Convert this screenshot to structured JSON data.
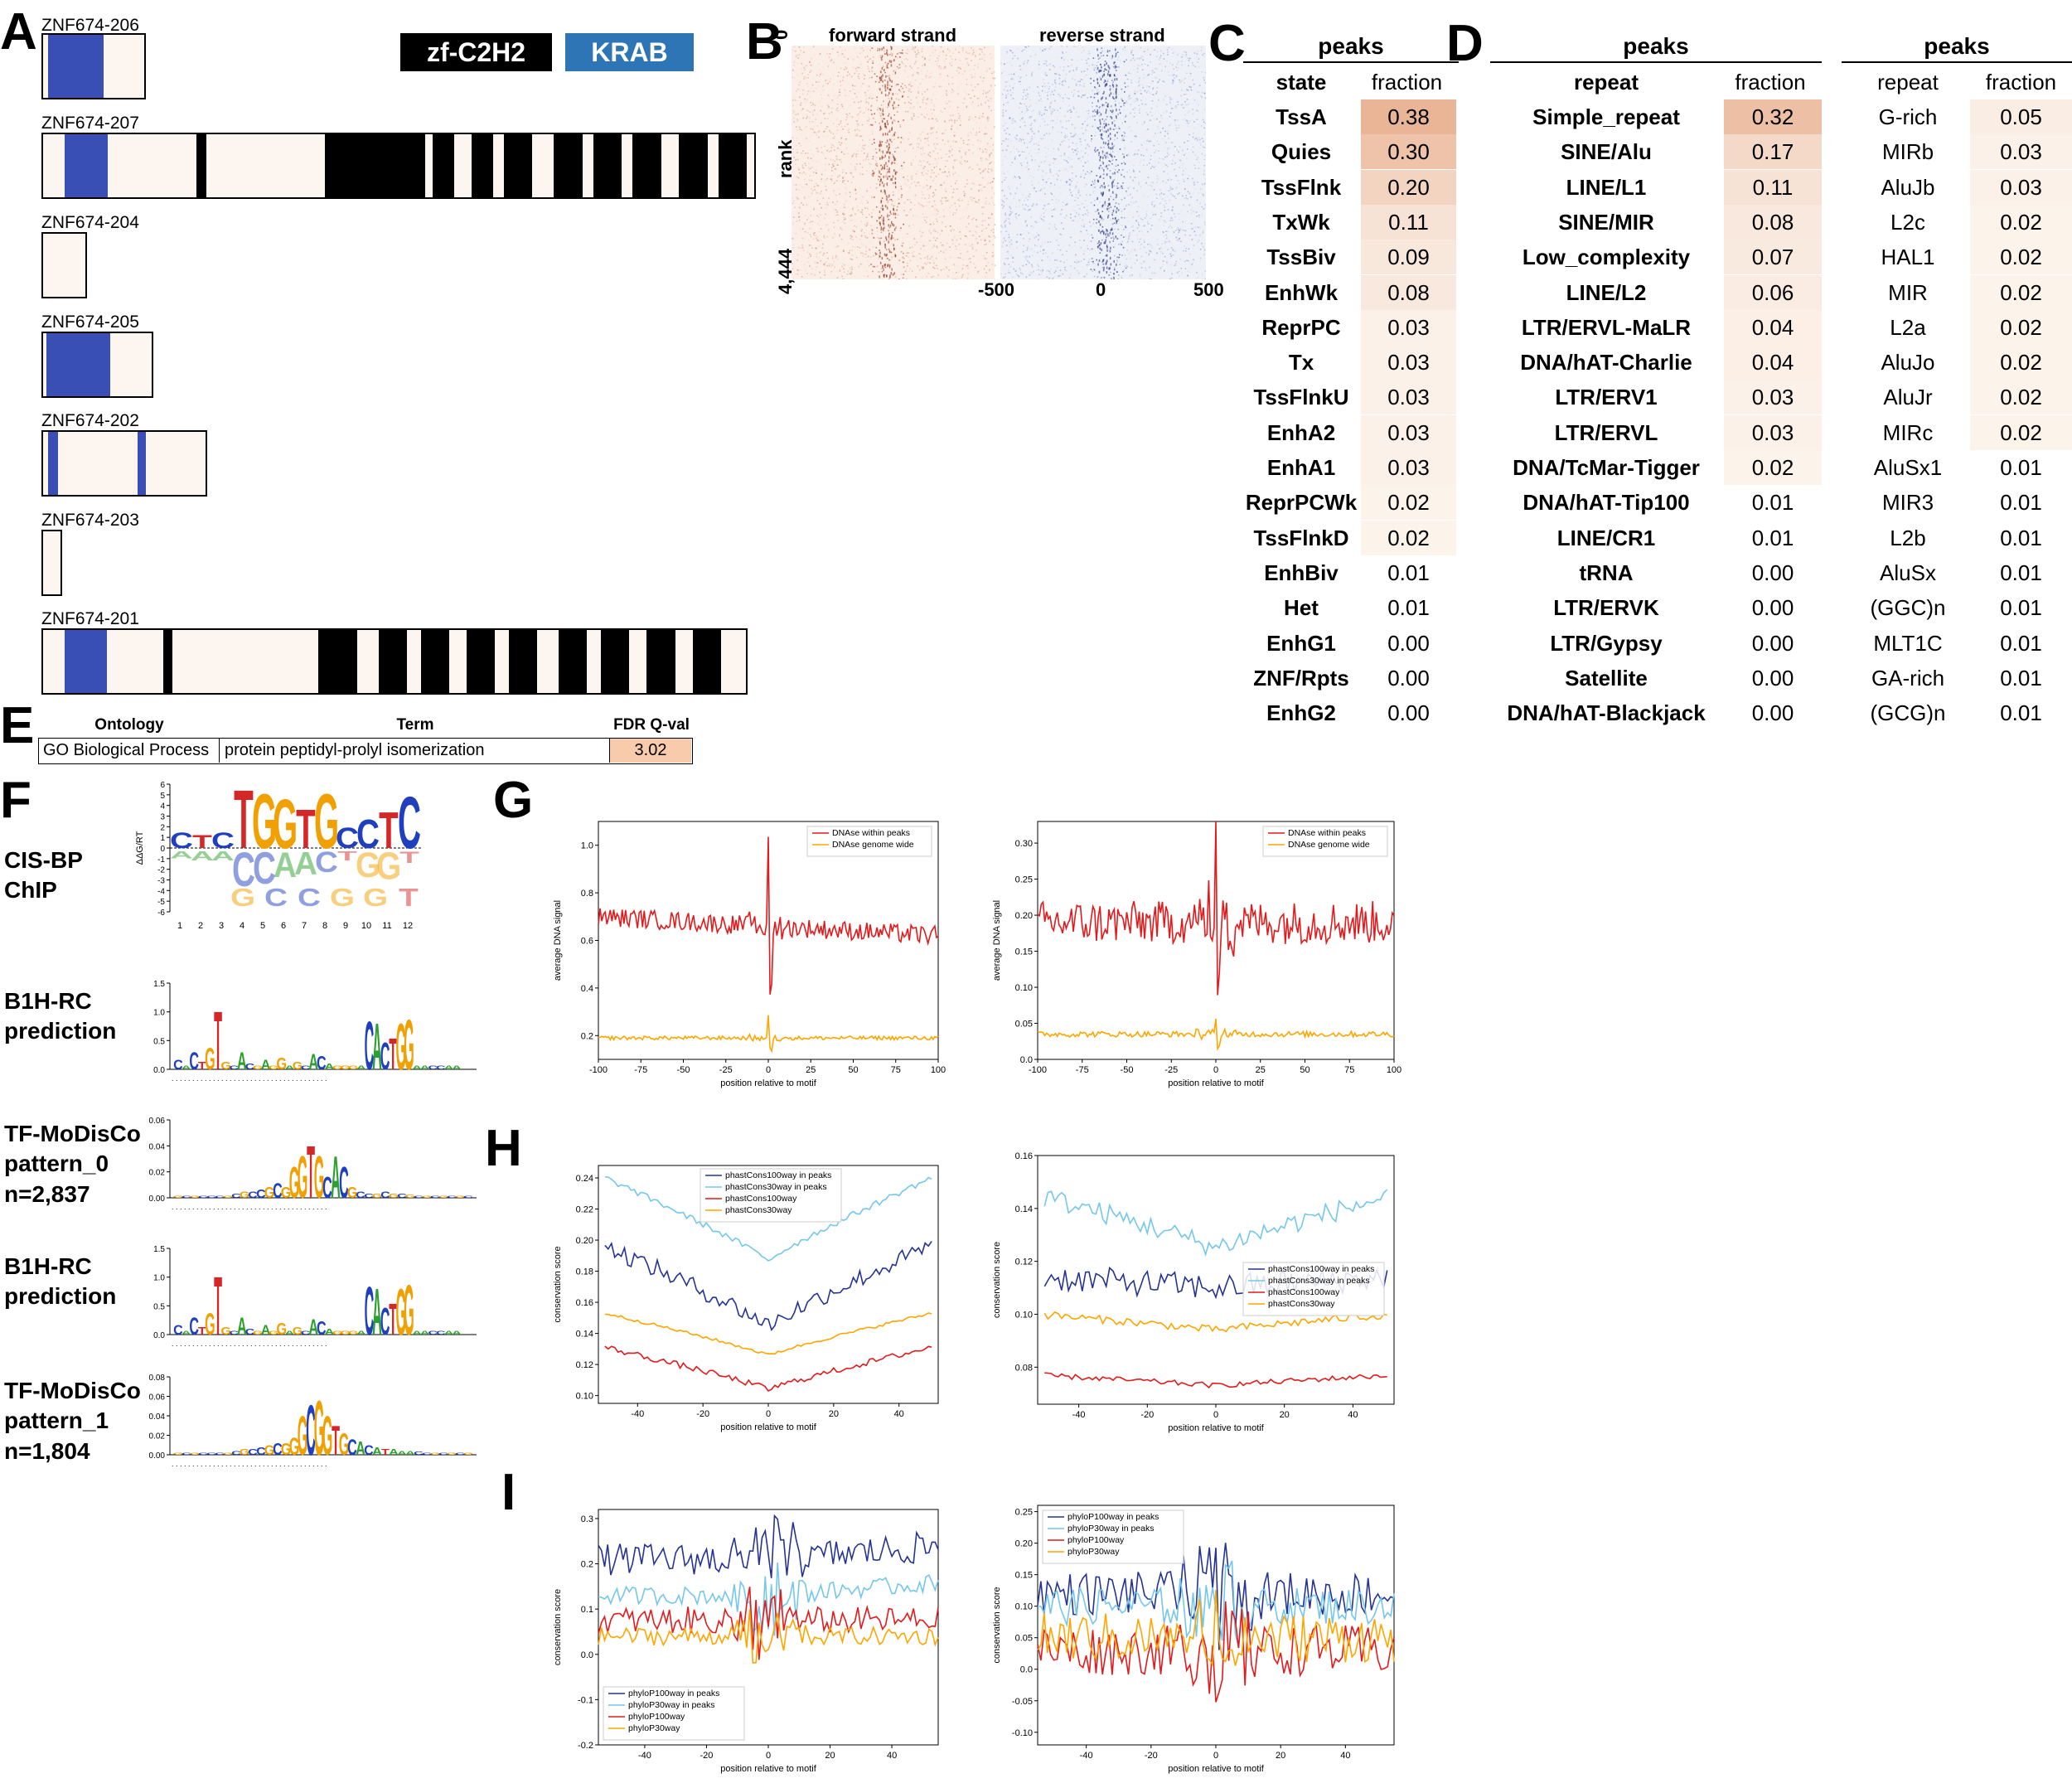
{
  "panelA": {
    "letter": "A",
    "legend": [
      {
        "label": "zf-C2H2",
        "color": "#000000"
      },
      {
        "label": "KRAB",
        "color": "#2e75b6"
      }
    ],
    "isoforms": [
      {
        "name": "ZNF674-206"
      },
      {
        "name": "ZNF674-207"
      },
      {
        "name": "ZNF674-204"
      },
      {
        "name": "ZNF674-205"
      },
      {
        "name": "ZNF674-202"
      },
      {
        "name": "ZNF674-203"
      },
      {
        "name": "ZNF674-201"
      }
    ]
  },
  "panelB": {
    "letter": "B",
    "forward": "forward strand",
    "reverse": "reverse strand",
    "ylabel": "rank",
    "ytick_top": "0",
    "ytick_bottom": "4,444",
    "xticks": [
      "-500",
      "0",
      "500"
    ]
  },
  "panelC": {
    "letter": "C",
    "header": "peaks",
    "col1": "state",
    "col2": "fraction",
    "rows": [
      {
        "label": "TssA",
        "value": "0.38"
      },
      {
        "label": "Quies",
        "value": "0.30"
      },
      {
        "label": "TssFlnk",
        "value": "0.20"
      },
      {
        "label": "TxWk",
        "value": "0.11"
      },
      {
        "label": "TssBiv",
        "value": "0.09"
      },
      {
        "label": "EnhWk",
        "value": "0.08"
      },
      {
        "label": "ReprPC",
        "value": "0.03"
      },
      {
        "label": "Tx",
        "value": "0.03"
      },
      {
        "label": "TssFlnkU",
        "value": "0.03"
      },
      {
        "label": "EnhA2",
        "value": "0.03"
      },
      {
        "label": "EnhA1",
        "value": "0.03"
      },
      {
        "label": "ReprPCWk",
        "value": "0.02"
      },
      {
        "label": "TssFlnkD",
        "value": "0.02"
      },
      {
        "label": "EnhBiv",
        "value": "0.01"
      },
      {
        "label": "Het",
        "value": "0.01"
      },
      {
        "label": "EnhG1",
        "value": "0.00"
      },
      {
        "label": "ZNF/Rpts",
        "value": "0.00"
      },
      {
        "label": "EnhG2",
        "value": "0.00"
      }
    ]
  },
  "panelD": {
    "letter": "D",
    "header_left": "peaks",
    "header_right": "peaks",
    "col1": "repeat",
    "col2": "fraction",
    "col3": "repeat",
    "col4": "fraction",
    "left_rows": [
      {
        "label": "Simple_repeat",
        "value": "0.32"
      },
      {
        "label": "SINE/Alu",
        "value": "0.17"
      },
      {
        "label": "LINE/L1",
        "value": "0.11"
      },
      {
        "label": "SINE/MIR",
        "value": "0.08"
      },
      {
        "label": "Low_complexity",
        "value": "0.07"
      },
      {
        "label": "LINE/L2",
        "value": "0.06"
      },
      {
        "label": "LTR/ERVL-MaLR",
        "value": "0.04"
      },
      {
        "label": "DNA/hAT-Charlie",
        "value": "0.04"
      },
      {
        "label": "LTR/ERV1",
        "value": "0.03"
      },
      {
        "label": "LTR/ERVL",
        "value": "0.03"
      },
      {
        "label": "DNA/TcMar-Tigger",
        "value": "0.02"
      },
      {
        "label": "DNA/hAT-Tip100",
        "value": "0.01"
      },
      {
        "label": "LINE/CR1",
        "value": "0.01"
      },
      {
        "label": "tRNA",
        "value": "0.00"
      },
      {
        "label": "LTR/ERVK",
        "value": "0.00"
      },
      {
        "label": "LTR/Gypsy",
        "value": "0.00"
      },
      {
        "label": "Satellite",
        "value": "0.00"
      },
      {
        "label": "DNA/hAT-Blackjack",
        "value": "0.00"
      }
    ],
    "right_rows": [
      {
        "label": "G-rich",
        "value": "0.05"
      },
      {
        "label": "MIRb",
        "value": "0.03"
      },
      {
        "label": "AluJb",
        "value": "0.03"
      },
      {
        "label": "L2c",
        "value": "0.02"
      },
      {
        "label": "HAL1",
        "value": "0.02"
      },
      {
        "label": "MIR",
        "value": "0.02"
      },
      {
        "label": "L2a",
        "value": "0.02"
      },
      {
        "label": "AluJo",
        "value": "0.02"
      },
      {
        "label": "AluJr",
        "value": "0.02"
      },
      {
        "label": "MIRc",
        "value": "0.02"
      },
      {
        "label": "AluSx1",
        "value": "0.01"
      },
      {
        "label": "MIR3",
        "value": "0.01"
      },
      {
        "label": "L2b",
        "value": "0.01"
      },
      {
        "label": "AluSx",
        "value": "0.01"
      },
      {
        "label": "(GGC)n",
        "value": "0.01"
      },
      {
        "label": "MLT1C",
        "value": "0.01"
      },
      {
        "label": "GA-rich",
        "value": "0.01"
      },
      {
        "label": "(GCG)n",
        "value": "0.01"
      }
    ]
  },
  "panelE": {
    "letter": "E",
    "headers": [
      "Ontology",
      "Term",
      "FDR Q-val"
    ],
    "row": [
      "GO Biological Process",
      "protein peptidyl-prolyl isomerization",
      "3.02"
    ]
  },
  "panelF": {
    "letter": "F",
    "rows": [
      {
        "label": "CIS-BP\nChIP",
        "ylabel": "ΔΔG/RT",
        "yticks": [
          "6",
          "5",
          "4",
          "3",
          "2",
          "1",
          "0",
          "-1",
          "-2",
          "-3",
          "-4",
          "-5",
          "-6"
        ],
        "xticks": [
          "1",
          "2",
          "3",
          "4",
          "5",
          "6",
          "7",
          "8",
          "9",
          "10",
          "11",
          "12"
        ]
      },
      {
        "label": "B1H-RC\nprediction",
        "yticks": [
          "1.5",
          "1.0",
          "0.5",
          "0.0"
        ]
      },
      {
        "label": "TF-MoDisCo\npattern_0\nn=2,837",
        "yticks": [
          "0.06",
          "0.04",
          "0.02",
          "0.00"
        ]
      },
      {
        "label": "B1H-RC\nprediction",
        "yticks": [
          "1.5",
          "1.0",
          "0.5",
          "0.0"
        ]
      },
      {
        "label": "TF-MoDisCo\npattern_1\nn=1,804",
        "yticks": [
          "0.08",
          "0.06",
          "0.04",
          "0.02",
          "0.00"
        ]
      }
    ],
    "logo_main_letters": "TGGTGCTCC"
  },
  "panelG": {
    "letter": "G"
  },
  "panelH": {
    "letter": "H"
  },
  "panelI": {
    "letter": "I"
  },
  "chart_data": [
    {
      "id": "G-left",
      "type": "line",
      "xlabel": "position relative to motif",
      "ylabel": "average DNA signal",
      "xlim": [
        -100,
        100
      ],
      "ylim": [
        0.1,
        1.1
      ],
      "xticks": [
        -100,
        -75,
        -50,
        -25,
        0,
        25,
        50,
        75,
        100
      ],
      "yticks": [
        0.2,
        0.4,
        0.6,
        0.8,
        1.0
      ],
      "legend": "top-right",
      "series": [
        {
          "name": "DNAse within peaks",
          "color": "#e31a1c",
          "base": 0.66,
          "slope": -0.0004,
          "noise": 0.04,
          "peak_x": 0,
          "peak_y": 1.04,
          "dip_y": 0.4
        },
        {
          "name": "DNAse genome wide",
          "color": "#ffa500",
          "base": 0.19,
          "slope": 0,
          "noise": 0.008,
          "peak_x": 0,
          "peak_y": 0.28,
          "dip_y": 0.14
        }
      ]
    },
    {
      "id": "G-right",
      "type": "line",
      "xlabel": "position relative to motif",
      "ylabel": "average DNA signal",
      "xlim": [
        -100,
        100
      ],
      "ylim": [
        0.0,
        0.33
      ],
      "xticks": [
        -100,
        -75,
        -50,
        -25,
        0,
        25,
        50,
        75,
        100
      ],
      "yticks": [
        0.0,
        0.05,
        0.1,
        0.15,
        0.2,
        0.25,
        0.3
      ],
      "legend": "top-right",
      "series": [
        {
          "name": "DNAse within peaks",
          "color": "#e31a1c",
          "base": 0.19,
          "slope": 0,
          "noise": 0.03,
          "peak_x": 0,
          "peak_y": 0.33,
          "dip_y": 0.1
        },
        {
          "name": "DNAse genome wide",
          "color": "#ffa500",
          "base": 0.035,
          "slope": 0,
          "noise": 0.004,
          "peak_x": 0,
          "peak_y": 0.06,
          "dip_y": 0.018
        }
      ]
    },
    {
      "id": "H-left",
      "type": "line",
      "xlabel": "position relative to motif",
      "ylabel": "conservation score",
      "xlim": [
        -52,
        52
      ],
      "ylim": [
        0.095,
        0.248
      ],
      "xticks": [
        -40,
        -20,
        0,
        20,
        40
      ],
      "yticks": [
        0.1,
        0.12,
        0.14,
        0.16,
        0.18,
        0.2,
        0.22,
        0.24
      ],
      "legend": "top-center",
      "series": [
        {
          "name": "phastCons100way in peaks",
          "color": "#253494",
          "edge": 0.198,
          "center": 0.145,
          "noise": 0.006
        },
        {
          "name": "phastCons30way in peaks",
          "color": "#74c7ec",
          "edge": 0.242,
          "center": 0.187,
          "noise": 0.002
        },
        {
          "name": "phastCons100way",
          "color": "#e31a1c",
          "edge": 0.132,
          "center": 0.104,
          "noise": 0.002
        },
        {
          "name": "phastCons30way",
          "color": "#ffa500",
          "edge": 0.154,
          "center": 0.126,
          "noise": 0.001
        }
      ]
    },
    {
      "id": "H-right",
      "type": "line",
      "xlabel": "position relative to motif",
      "ylabel": "conservation score",
      "xlim": [
        -52,
        52
      ],
      "ylim": [
        0.066,
        0.16
      ],
      "xticks": [
        -40,
        -20,
        0,
        20,
        40
      ],
      "yticks": [
        0.08,
        0.1,
        0.12,
        0.14,
        0.16
      ],
      "legend": "center-right",
      "series": [
        {
          "name": "phastCons100way in peaks",
          "color": "#253494",
          "edge": 0.114,
          "center": 0.11,
          "noise": 0.005
        },
        {
          "name": "phastCons30way in peaks",
          "color": "#74c7ec",
          "edge": 0.145,
          "center": 0.125,
          "noise": 0.004
        },
        {
          "name": "phastCons100way",
          "color": "#e31a1c",
          "edge": 0.077,
          "center": 0.073,
          "noise": 0.001
        },
        {
          "name": "phastCons30way",
          "color": "#ffa500",
          "edge": 0.1,
          "center": 0.094,
          "noise": 0.0015
        }
      ]
    },
    {
      "id": "I-left",
      "type": "line",
      "xlabel": "position relative to motif",
      "ylabel": "conservation score",
      "xlim": [
        -55,
        55
      ],
      "ylim": [
        -0.2,
        0.32
      ],
      "xticks": [
        -40,
        -20,
        0,
        20,
        40
      ],
      "yticks": [
        -0.2,
        -0.1,
        0.0,
        0.1,
        0.2,
        0.3
      ],
      "legend": "bottom-left",
      "series": [
        {
          "name": "phyloP100way in peaks",
          "color": "#253494",
          "base": 0.21,
          "noise": 0.035
        },
        {
          "name": "phyloP30way in peaks",
          "color": "#74c7ec",
          "base": 0.13,
          "noise": 0.02
        },
        {
          "name": "phyloP100way",
          "color": "#e31a1c",
          "base": 0.075,
          "noise": 0.03
        },
        {
          "name": "phyloP30way",
          "color": "#ffa500",
          "base": 0.04,
          "noise": 0.02
        }
      ]
    },
    {
      "id": "I-right",
      "type": "line",
      "xlabel": "position relative to motif",
      "ylabel": "conservation score",
      "xlim": [
        -55,
        55
      ],
      "ylim": [
        -0.12,
        0.26
      ],
      "xticks": [
        -40,
        -20,
        0,
        20,
        40
      ],
      "yticks": [
        -0.1,
        -0.05,
        0.0,
        0.05,
        0.1,
        0.15,
        0.2,
        0.25
      ],
      "legend": "top-left",
      "series": [
        {
          "name": "phyloP100way in peaks",
          "color": "#253494",
          "base": 0.12,
          "noise": 0.035
        },
        {
          "name": "phyloP30way in peaks",
          "color": "#74c7ec",
          "base": 0.1,
          "noise": 0.03
        },
        {
          "name": "phyloP100way",
          "color": "#e31a1c",
          "base": 0.03,
          "noise": 0.04
        },
        {
          "name": "phyloP30way",
          "color": "#ffa500",
          "base": 0.05,
          "noise": 0.04
        }
      ]
    }
  ]
}
